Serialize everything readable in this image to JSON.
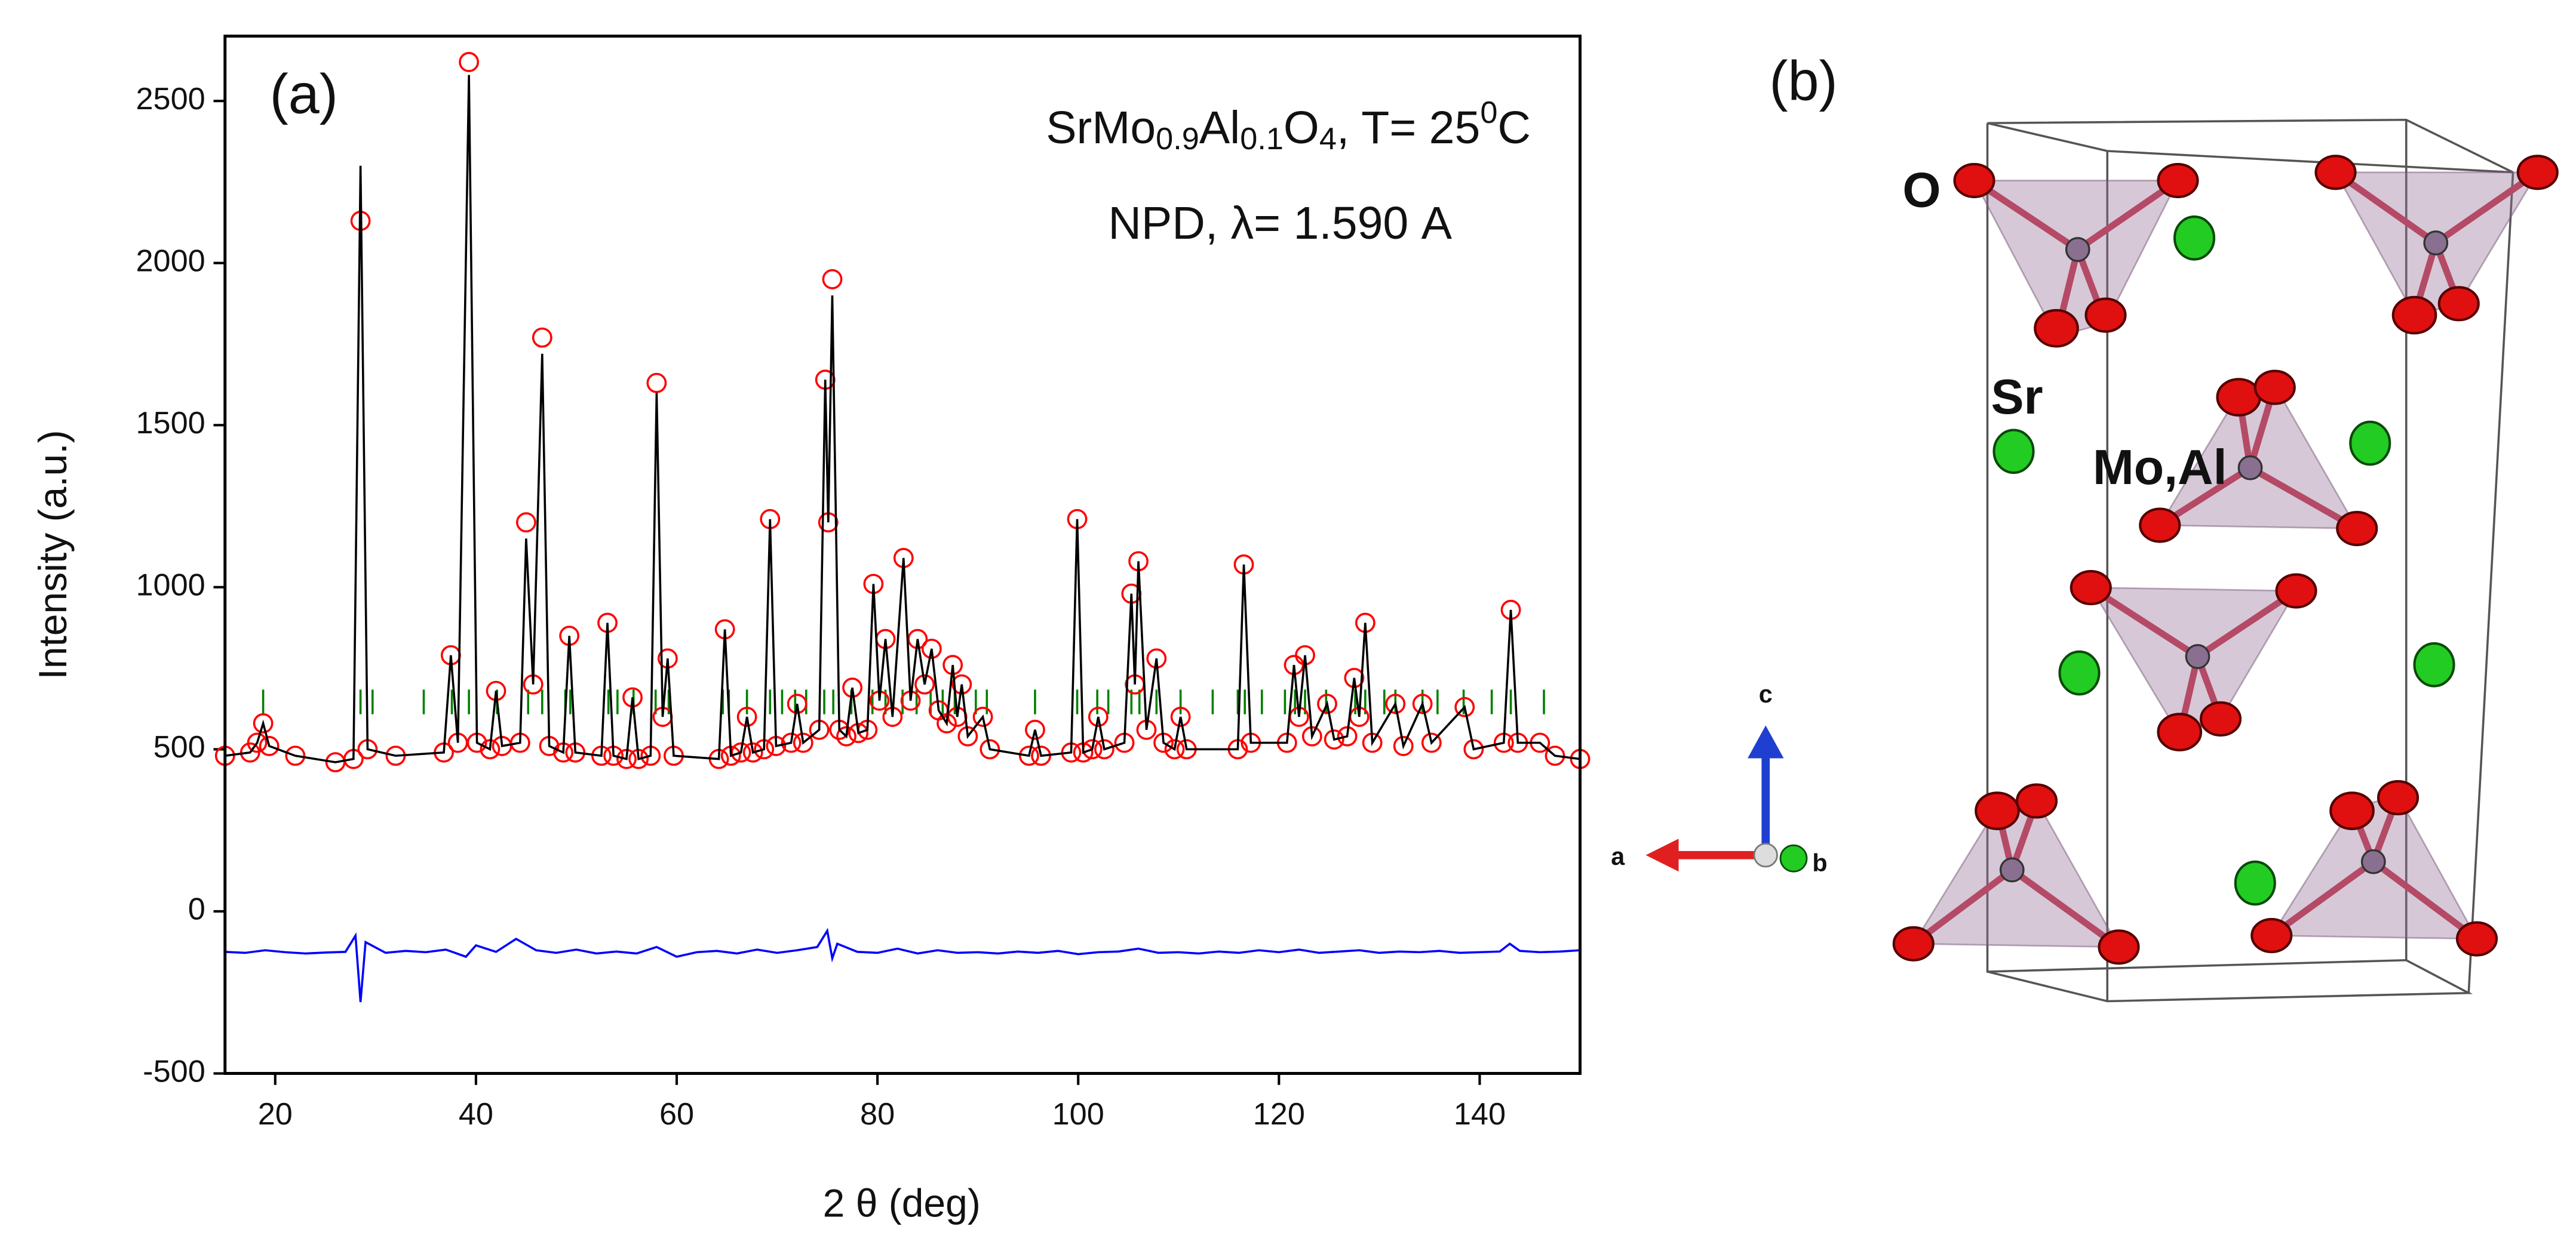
{
  "chart_data": {
    "type": "line",
    "annotation_formula": [
      "SrMo",
      "0.9",
      "Al",
      "0.1",
      "O",
      "4",
      ", T= 25",
      "0",
      "C"
    ],
    "annotation_2": "NPD, λ= 1.590 A",
    "xlabel": "2 θ (deg)",
    "ylabel": "Intensity (a.u.)",
    "xlim": [
      15,
      150
    ],
    "xticks": [
      20,
      40,
      60,
      80,
      100,
      120,
      140
    ],
    "ylim": [
      -500,
      2700
    ],
    "yticks": [
      -500,
      0,
      500,
      1000,
      1500,
      2000,
      2500
    ],
    "x": [
      15,
      17.5,
      18.2,
      18.8,
      19.4,
      22,
      26,
      27.8,
      28.5,
      29.2,
      32,
      36.8,
      37.5,
      38.2,
      39.3,
      40.1,
      41.4,
      42,
      42.6,
      44.4,
      45,
      45.7,
      46.6,
      47.3,
      48.7,
      49.3,
      49.9,
      52.5,
      53.1,
      53.7,
      55,
      55.6,
      56.2,
      57.4,
      58,
      58.6,
      59.1,
      59.7,
      64.2,
      64.8,
      65.4,
      66.4,
      67,
      67.6,
      68.7,
      69.3,
      69.9,
      71.4,
      72,
      72.6,
      74.2,
      74.8,
      75.1,
      75.5,
      76.2,
      76.9,
      77.5,
      78.1,
      79,
      79.6,
      80.2,
      80.8,
      81.5,
      82.6,
      83.3,
      84,
      84.7,
      85.4,
      86.1,
      86.9,
      87.5,
      87.95,
      88.4,
      89,
      90.5,
      91.2,
      95.1,
      95.7,
      96.3,
      99.3,
      99.9,
      100.5,
      101.4,
      102,
      102.6,
      104.6,
      105.3,
      105.65,
      106,
      106.8,
      107.8,
      108.5,
      109.6,
      110.2,
      110.8,
      115.9,
      116.5,
      117.2,
      120.8,
      121.5,
      122,
      122.6,
      123.3,
      124.8,
      125.5,
      126.8,
      127.5,
      128,
      128.6,
      129.3,
      131.6,
      132.4,
      134.3,
      135.2,
      138.5,
      139.4,
      142.4,
      143.1,
      143.8,
      146,
      147.5,
      150
    ],
    "series": [
      {
        "style": "markers",
        "color": "#ff0000",
        "values": [
          480,
          490,
          520,
          580,
          510,
          480,
          460,
          470,
          2130,
          500,
          480,
          490,
          790,
          520,
          2620,
          520,
          500,
          680,
          510,
          520,
          1200,
          700,
          1770,
          510,
          490,
          850,
          490,
          480,
          890,
          480,
          470,
          660,
          470,
          480,
          1630,
          600,
          780,
          480,
          470,
          870,
          480,
          490,
          600,
          490,
          500,
          1210,
          510,
          520,
          640,
          520,
          560,
          1640,
          1200,
          1950,
          560,
          540,
          690,
          550,
          560,
          1010,
          650,
          840,
          600,
          1090,
          650,
          840,
          700,
          810,
          620,
          580,
          760,
          600,
          700,
          540,
          600,
          500,
          480,
          560,
          480,
          490,
          1210,
          490,
          500,
          600,
          500,
          520,
          980,
          700,
          1080,
          560,
          780,
          520,
          500,
          600,
          500,
          500,
          1070,
          520,
          520,
          760,
          600,
          790,
          540,
          640,
          530,
          540,
          720,
          600,
          890,
          520,
          640,
          510,
          640,
          520,
          630,
          500,
          520,
          930,
          520,
          520,
          480,
          470
        ]
      },
      {
        "style": "line",
        "color": "#000000",
        "values": [
          480,
          490,
          520,
          580,
          510,
          480,
          460,
          470,
          2300,
          500,
          480,
          490,
          790,
          520,
          2580,
          520,
          500,
          680,
          510,
          520,
          1150,
          700,
          1720,
          510,
          490,
          850,
          490,
          480,
          890,
          480,
          470,
          660,
          470,
          480,
          1600,
          600,
          780,
          480,
          470,
          870,
          480,
          490,
          600,
          490,
          500,
          1210,
          510,
          520,
          640,
          520,
          560,
          1640,
          1200,
          1900,
          560,
          540,
          690,
          550,
          560,
          1010,
          650,
          840,
          600,
          1090,
          650,
          840,
          700,
          810,
          620,
          580,
          760,
          600,
          700,
          540,
          600,
          500,
          480,
          560,
          480,
          490,
          1210,
          490,
          500,
          600,
          500,
          520,
          980,
          700,
          1080,
          560,
          780,
          520,
          500,
          600,
          500,
          500,
          1070,
          520,
          520,
          760,
          600,
          790,
          540,
          640,
          530,
          540,
          720,
          600,
          890,
          520,
          640,
          510,
          640,
          520,
          630,
          500,
          520,
          930,
          520,
          520,
          480,
          470
        ]
      },
      {
        "style": "line",
        "color": "#0000ff",
        "x": [
          15,
          17,
          19,
          21,
          23,
          25,
          27,
          28,
          28.5,
          29,
          31,
          33,
          35,
          37,
          39,
          40,
          42,
          44,
          46,
          48,
          50,
          52,
          54,
          56,
          58,
          60,
          62,
          64,
          66,
          68,
          70,
          72,
          74,
          75,
          75.5,
          76,
          78,
          80,
          82,
          84,
          86,
          88,
          90,
          92,
          94,
          96,
          98,
          100,
          102,
          104,
          106,
          108,
          110,
          112,
          114,
          116,
          118,
          120,
          122,
          124,
          126,
          128,
          130,
          132,
          134,
          136,
          138,
          140,
          142,
          143,
          144,
          146,
          148,
          150
        ],
        "values": [
          -125,
          -128,
          -120,
          -126,
          -130,
          -127,
          -125,
          -75,
          -280,
          -95,
          -128,
          -122,
          -126,
          -118,
          -140,
          -105,
          -125,
          -85,
          -120,
          -128,
          -118,
          -130,
          -124,
          -130,
          -110,
          -140,
          -126,
          -122,
          -130,
          -118,
          -128,
          -120,
          -110,
          -60,
          -145,
          -100,
          -125,
          -128,
          -115,
          -130,
          -120,
          -128,
          -126,
          -130,
          -124,
          -128,
          -122,
          -132,
          -126,
          -124,
          -115,
          -128,
          -126,
          -130,
          -124,
          -128,
          -120,
          -126,
          -118,
          -128,
          -124,
          -120,
          -128,
          -124,
          -126,
          -122,
          -128,
          -126,
          -124,
          -100,
          -122,
          -126,
          -124,
          -120
        ]
      }
    ],
    "bragg_color": "#008000",
    "bragg_positions": [
      18.8,
      28.5,
      29.7,
      34.8,
      37.6,
      39.3,
      42.1,
      45.2,
      46.6,
      48.9,
      49.4,
      53.2,
      54.1,
      55.7,
      57.9,
      59.2,
      64.6,
      65.2,
      67.0,
      69.3,
      70.5,
      71.8,
      72.9,
      74.7,
      75.6,
      77.4,
      79.5,
      80.8,
      82.5,
      83.9,
      85.3,
      86.5,
      87.7,
      89.8,
      90.9,
      95.7,
      99.9,
      101.9,
      103.0,
      105.3,
      106.1,
      107.8,
      110.2,
      113.4,
      115.9,
      116.6,
      118.3,
      120.6,
      121.6,
      122.6,
      124.7,
      127.6,
      128.6,
      130.5,
      131.6,
      134.3,
      135.8,
      138.4,
      141.2,
      143.1,
      146.4
    ]
  },
  "panel_a": "(a)",
  "panel_b": "(b)",
  "atom_labels": [
    "O",
    "Sr",
    "Mo,Al"
  ],
  "axis_labels": [
    "c",
    "a",
    "b"
  ]
}
